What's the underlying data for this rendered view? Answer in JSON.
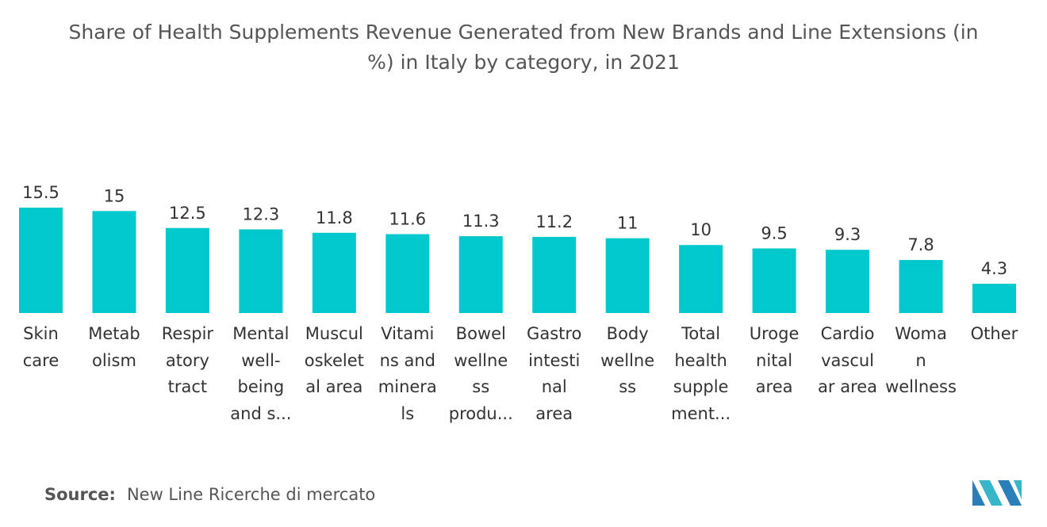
{
  "title": "Share of Health Supplements Revenue Generated from New Brands and Line Extensions (in\n%) in Italy by category, in 2021",
  "chart_data": {
    "type": "bar",
    "color": "#00c8cc",
    "categories": [
      "Skin\ncare",
      "Metab\nolism",
      "Respir\natory\ntract",
      "Mental\nwell-\nbeing\nand s...",
      "Muscul\noskelet\nal area",
      "Vitami\nns and\nminera\nls",
      "Bowel\nwellne\nss\nprodu...",
      "Gastro\nintesti\nnal\narea",
      "Body\nwellne\nss",
      "Total\nhealth\nsupple\nment...",
      "Uroge\nnital\narea",
      "Cardio\nvascul\nar area",
      "Woma\nn\nwellness",
      "Other"
    ],
    "values": [
      15.5,
      15,
      12.5,
      12.3,
      11.8,
      11.6,
      11.3,
      11.2,
      11,
      10,
      9.5,
      9.3,
      7.8,
      4.3
    ]
  },
  "source": {
    "label": "Source:",
    "text": "New Line Ricerche di mercato"
  }
}
